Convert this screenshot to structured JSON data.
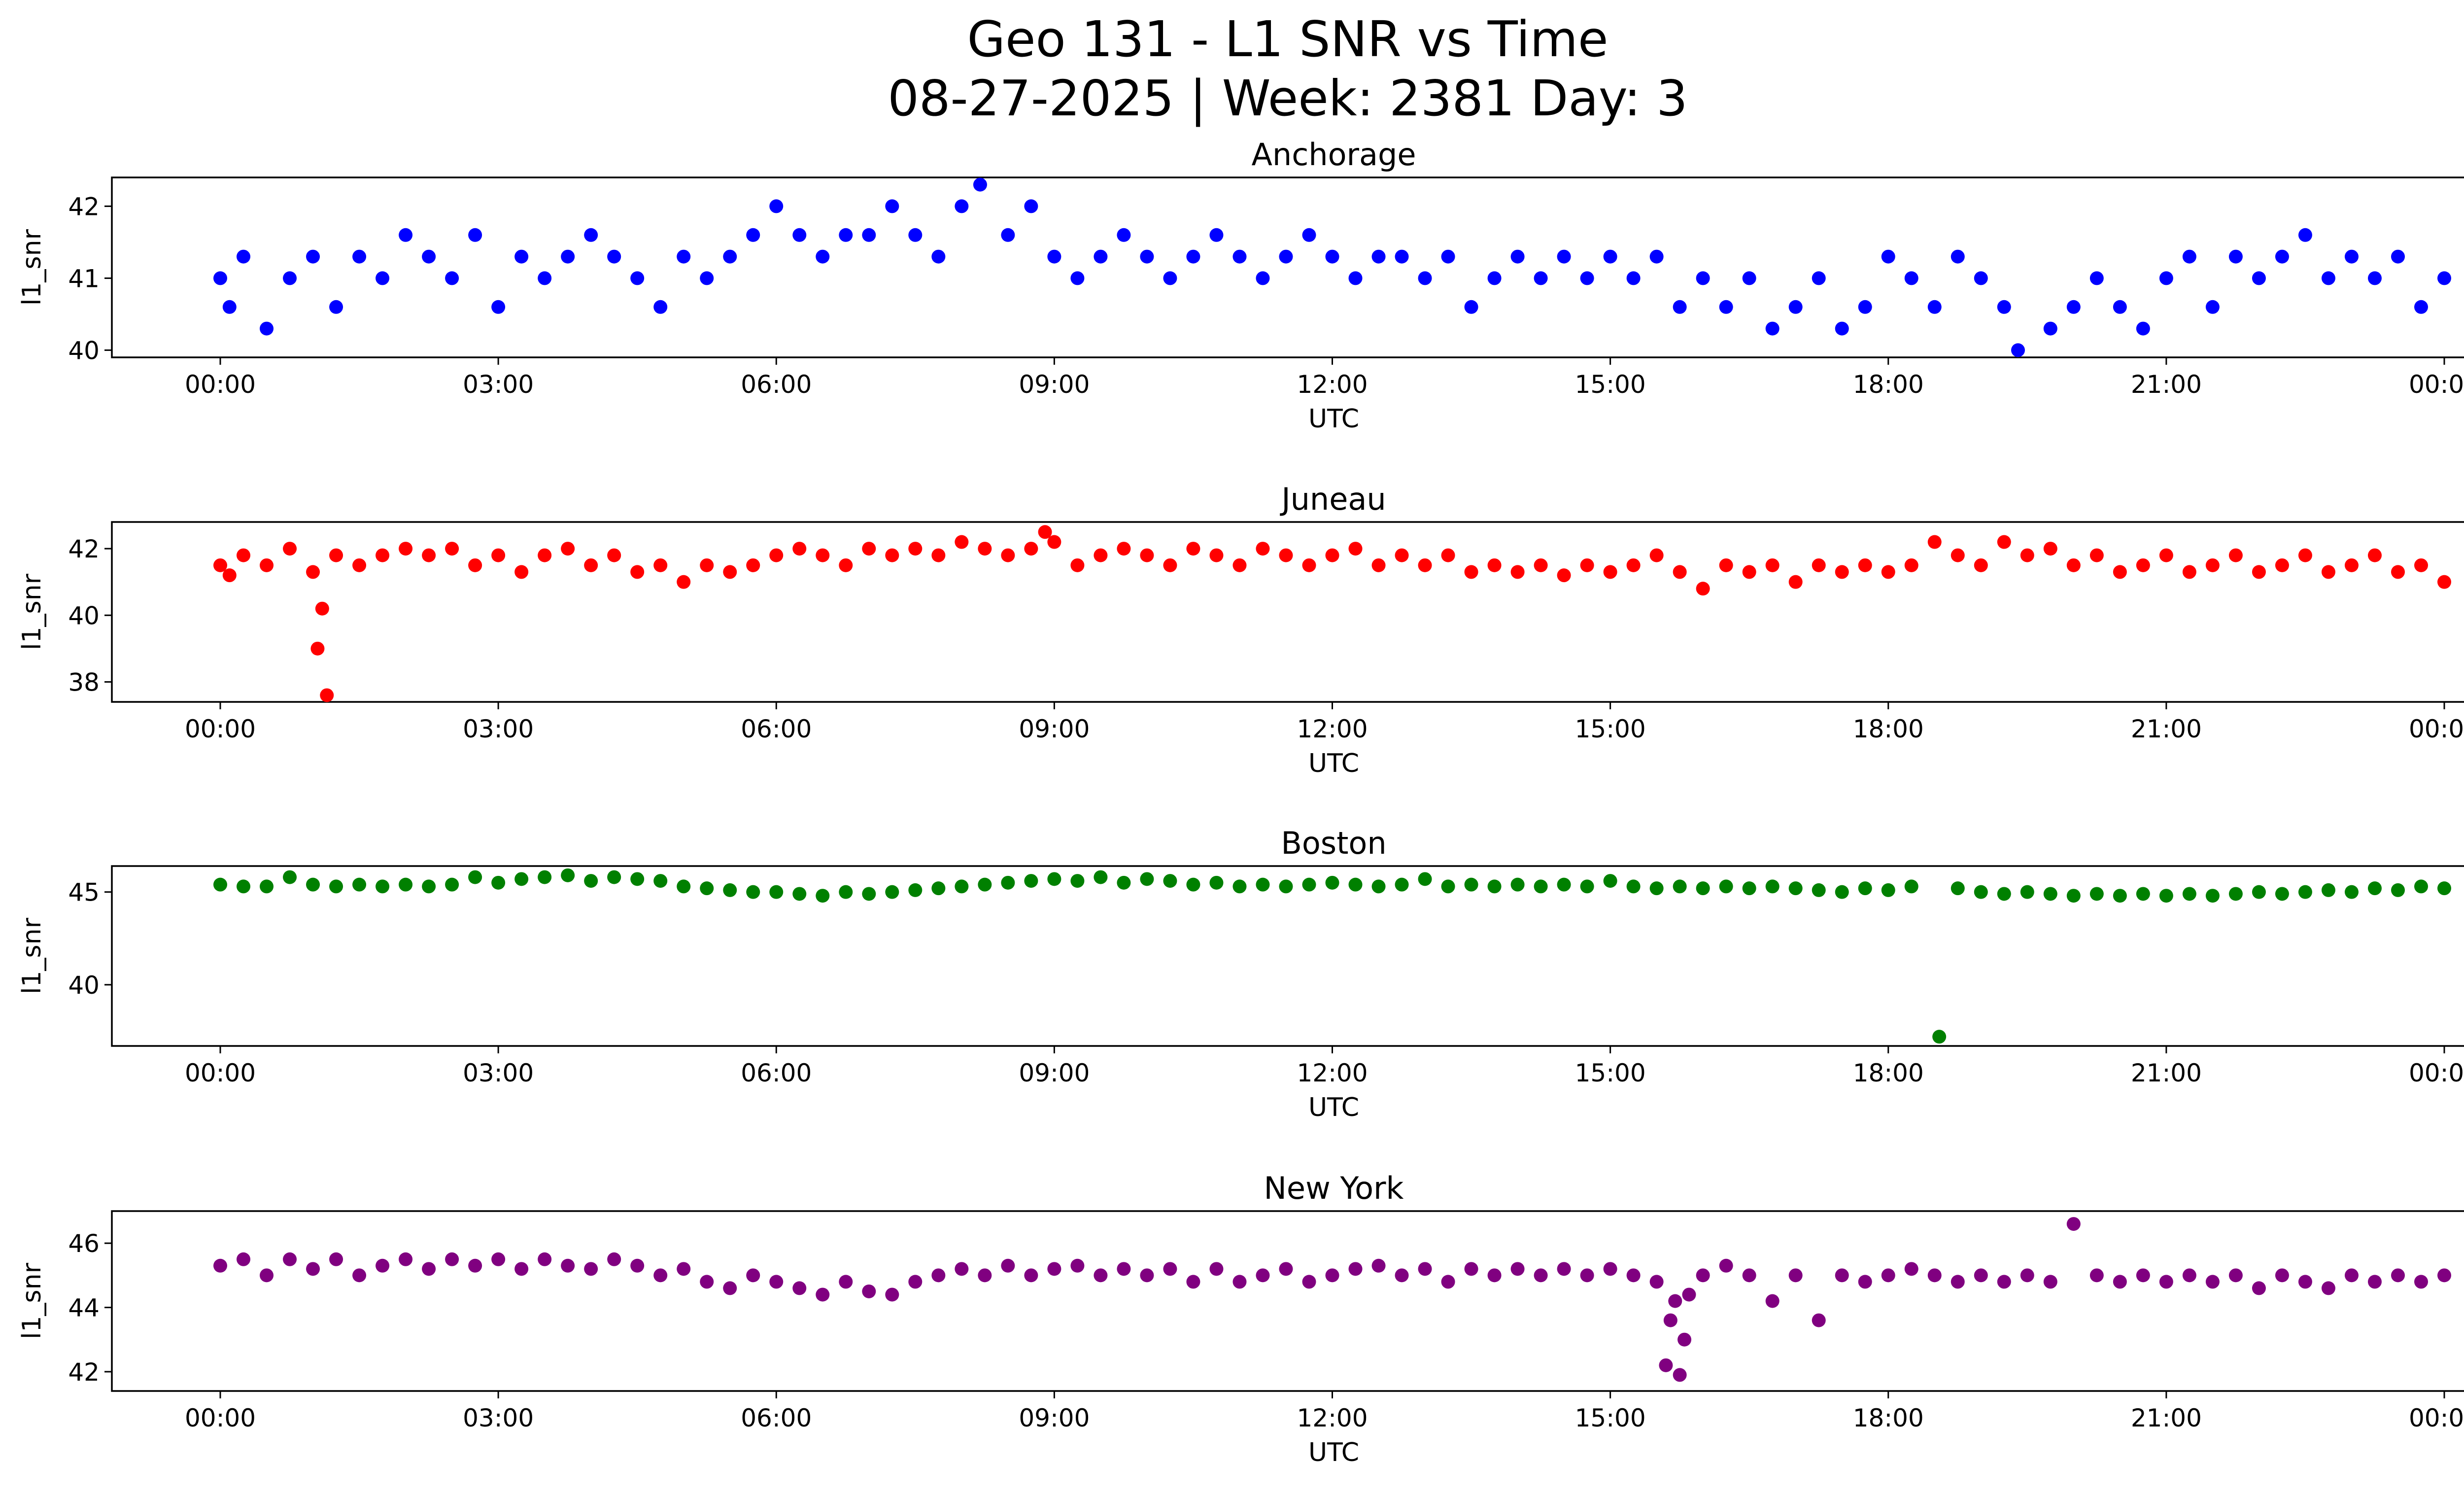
{
  "title_line1": "Geo 131 - L1 SNR vs Time",
  "title_line2": "08-27-2025 | Week: 2381 Day: 3",
  "x_ticks": [
    "00:00",
    "03:00",
    "06:00",
    "09:00",
    "12:00",
    "15:00",
    "18:00",
    "21:00",
    "00:00"
  ],
  "chart_data": [
    {
      "type": "scatter",
      "title": "Anchorage",
      "xlabel": "UTC",
      "ylabel": "l1_snr",
      "color": "#0000ff",
      "xlim": [
        0,
        24
      ],
      "ylim": [
        39.9,
        42.4
      ],
      "yticks": [
        40,
        41,
        42
      ],
      "series": [
        {
          "name": "Anchorage",
          "x": [
            0.0,
            0.1,
            0.25,
            0.5,
            0.75,
            1.0,
            1.25,
            1.5,
            1.75,
            2.0,
            2.25,
            2.5,
            2.75,
            3.0,
            3.25,
            3.5,
            3.75,
            4.0,
            4.25,
            4.5,
            4.75,
            5.0,
            5.25,
            5.5,
            5.75,
            6.0,
            6.25,
            6.5,
            6.75,
            7.0,
            7.25,
            7.5,
            7.75,
            8.0,
            8.2,
            8.5,
            8.75,
            9.0,
            9.25,
            9.5,
            9.75,
            10.0,
            10.25,
            10.5,
            10.75,
            11.0,
            11.25,
            11.5,
            11.75,
            12.0,
            12.25,
            12.5,
            12.75,
            13.0,
            13.25,
            13.5,
            13.75,
            14.0,
            14.25,
            14.5,
            14.75,
            15.0,
            15.25,
            15.5,
            15.75,
            16.0,
            16.25,
            16.5,
            16.75,
            17.0,
            17.25,
            17.5,
            17.75,
            18.0,
            18.25,
            18.5,
            18.75,
            19.0,
            19.25,
            19.4,
            19.75,
            20.0,
            20.25,
            20.5,
            20.75,
            21.0,
            21.25,
            21.5,
            21.75,
            22.0,
            22.25,
            22.5,
            22.75,
            23.0,
            23.25,
            23.5,
            23.75,
            24.0
          ],
          "y": [
            41.0,
            40.6,
            41.3,
            40.3,
            41.0,
            41.3,
            40.6,
            41.3,
            41.0,
            41.6,
            41.3,
            41.0,
            41.6,
            40.6,
            41.3,
            41.0,
            41.3,
            41.6,
            41.3,
            41.0,
            40.6,
            41.3,
            41.0,
            41.3,
            41.6,
            42.0,
            41.6,
            41.3,
            41.6,
            41.6,
            42.0,
            41.6,
            41.3,
            42.0,
            42.3,
            41.6,
            42.0,
            41.3,
            41.0,
            41.3,
            41.6,
            41.3,
            41.0,
            41.3,
            41.6,
            41.3,
            41.0,
            41.3,
            41.6,
            41.3,
            41.0,
            41.3,
            41.3,
            41.0,
            41.3,
            40.6,
            41.0,
            41.3,
            41.0,
            41.3,
            41.0,
            41.3,
            41.0,
            41.3,
            40.6,
            41.0,
            40.6,
            41.0,
            40.3,
            40.6,
            41.0,
            40.3,
            40.6,
            41.3,
            41.0,
            40.6,
            41.3,
            41.0,
            40.6,
            40.0,
            40.3,
            40.6,
            41.0,
            40.6,
            40.3,
            41.0,
            41.3,
            40.6,
            41.3,
            41.0,
            41.3,
            41.6,
            41.0,
            41.3,
            41.0,
            41.3,
            40.6,
            41.0
          ]
        }
      ]
    },
    {
      "type": "scatter",
      "title": "Juneau",
      "xlabel": "UTC",
      "ylabel": "l1_snr",
      "color": "#ff0000",
      "xlim": [
        0,
        24
      ],
      "ylim": [
        37.4,
        42.8
      ],
      "yticks": [
        38,
        40,
        42
      ],
      "series": [
        {
          "name": "Juneau",
          "x": [
            0.0,
            0.1,
            1.1,
            1.05,
            1.15,
            0.25,
            0.5,
            0.75,
            1.0,
            1.25,
            1.5,
            1.75,
            2.0,
            2.25,
            2.5,
            2.75,
            3.0,
            3.25,
            3.5,
            3.75,
            4.0,
            4.25,
            4.5,
            4.75,
            5.0,
            5.25,
            5.5,
            5.75,
            6.0,
            6.25,
            6.5,
            6.75,
            7.0,
            7.25,
            7.5,
            7.75,
            8.0,
            8.25,
            8.5,
            8.75,
            8.9,
            9.0,
            9.25,
            9.5,
            9.75,
            10.0,
            10.25,
            10.5,
            10.75,
            11.0,
            11.25,
            11.5,
            11.75,
            12.0,
            12.25,
            12.5,
            12.75,
            13.0,
            13.25,
            13.5,
            13.75,
            14.0,
            14.25,
            14.5,
            14.75,
            15.0,
            15.25,
            15.5,
            15.75,
            16.0,
            16.25,
            16.5,
            16.75,
            17.0,
            17.25,
            17.5,
            17.75,
            18.0,
            18.25,
            18.5,
            18.75,
            19.0,
            19.25,
            19.5,
            19.75,
            20.0,
            20.25,
            20.5,
            20.75,
            21.0,
            21.25,
            21.5,
            21.75,
            22.0,
            22.25,
            22.5,
            22.75,
            23.0,
            23.25,
            23.5,
            23.75,
            24.0
          ],
          "y": [
            41.5,
            41.2,
            40.2,
            39.0,
            37.6,
            41.8,
            41.5,
            42.0,
            41.3,
            41.8,
            41.5,
            41.8,
            42.0,
            41.8,
            42.0,
            41.5,
            41.8,
            41.3,
            41.8,
            42.0,
            41.5,
            41.8,
            41.3,
            41.5,
            41.0,
            41.5,
            41.3,
            41.5,
            41.8,
            42.0,
            41.8,
            41.5,
            42.0,
            41.8,
            42.0,
            41.8,
            42.2,
            42.0,
            41.8,
            42.0,
            42.5,
            42.2,
            41.5,
            41.8,
            42.0,
            41.8,
            41.5,
            42.0,
            41.8,
            41.5,
            42.0,
            41.8,
            41.5,
            41.8,
            42.0,
            41.5,
            41.8,
            41.5,
            41.8,
            41.3,
            41.5,
            41.3,
            41.5,
            41.2,
            41.5,
            41.3,
            41.5,
            41.8,
            41.3,
            40.8,
            41.5,
            41.3,
            41.5,
            41.0,
            41.5,
            41.3,
            41.5,
            41.3,
            41.5,
            42.2,
            41.8,
            41.5,
            42.2,
            41.8,
            42.0,
            41.5,
            41.8,
            41.3,
            41.5,
            41.8,
            41.3,
            41.5,
            41.8,
            41.3,
            41.5,
            41.8,
            41.3,
            41.5,
            41.8,
            41.3,
            41.5,
            41.0
          ]
        }
      ]
    },
    {
      "type": "scatter",
      "title": "Boston",
      "xlabel": "UTC",
      "ylabel": "l1_snr",
      "color": "#008000",
      "xlim": [
        0,
        24
      ],
      "ylim": [
        36.7,
        46.4
      ],
      "yticks": [
        40,
        45
      ],
      "series": [
        {
          "name": "Boston",
          "x": [
            0.0,
            0.25,
            0.5,
            0.75,
            1.0,
            1.25,
            1.5,
            1.75,
            2.0,
            2.25,
            2.5,
            2.75,
            3.0,
            3.25,
            3.5,
            3.75,
            4.0,
            4.25,
            4.5,
            4.75,
            5.0,
            5.25,
            5.5,
            5.75,
            6.0,
            6.25,
            6.5,
            6.75,
            7.0,
            7.25,
            7.5,
            7.75,
            8.0,
            8.25,
            8.5,
            8.75,
            9.0,
            9.25,
            9.5,
            9.75,
            10.0,
            10.25,
            10.5,
            10.75,
            11.0,
            11.25,
            11.5,
            11.75,
            12.0,
            12.25,
            12.5,
            12.75,
            13.0,
            13.25,
            13.5,
            13.75,
            14.0,
            14.25,
            14.5,
            14.75,
            15.0,
            15.25,
            15.5,
            15.75,
            16.0,
            16.25,
            16.5,
            16.75,
            17.0,
            17.25,
            17.5,
            17.75,
            18.0,
            18.25,
            18.55,
            18.75,
            19.0,
            19.25,
            19.5,
            19.75,
            20.0,
            20.25,
            20.5,
            20.75,
            21.0,
            21.25,
            21.5,
            21.75,
            22.0,
            22.25,
            22.5,
            22.75,
            23.0,
            23.25,
            23.5,
            23.75,
            24.0
          ],
          "y": [
            45.4,
            45.3,
            45.3,
            45.8,
            45.4,
            45.3,
            45.4,
            45.3,
            45.4,
            45.3,
            45.4,
            45.8,
            45.5,
            45.7,
            45.8,
            45.9,
            45.6,
            45.8,
            45.7,
            45.6,
            45.3,
            45.2,
            45.1,
            45.0,
            45.0,
            44.9,
            44.8,
            45.0,
            44.9,
            45.0,
            45.1,
            45.2,
            45.3,
            45.4,
            45.5,
            45.6,
            45.7,
            45.6,
            45.8,
            45.5,
            45.7,
            45.6,
            45.4,
            45.5,
            45.3,
            45.4,
            45.3,
            45.4,
            45.5,
            45.4,
            45.3,
            45.4,
            45.7,
            45.3,
            45.4,
            45.3,
            45.4,
            45.3,
            45.4,
            45.3,
            45.6,
            45.3,
            45.2,
            45.3,
            45.2,
            45.3,
            45.2,
            45.3,
            45.2,
            45.1,
            45.0,
            45.2,
            45.1,
            45.3,
            37.2,
            45.2,
            45.0,
            44.9,
            45.0,
            44.9,
            44.8,
            44.9,
            44.8,
            44.9,
            44.8,
            44.9,
            44.8,
            44.9,
            45.0,
            44.9,
            45.0,
            45.1,
            45.0,
            45.2,
            45.1,
            45.3,
            45.2
          ]
        }
      ]
    },
    {
      "type": "scatter",
      "title": "New York",
      "xlabel": "UTC",
      "ylabel": "l1_snr",
      "color": "#800080",
      "xlim": [
        0,
        24
      ],
      "ylim": [
        41.4,
        47.0
      ],
      "yticks": [
        42,
        44,
        46
      ],
      "series": [
        {
          "name": "New York",
          "x": [
            0.0,
            0.25,
            0.5,
            0.75,
            1.0,
            1.25,
            1.5,
            1.75,
            2.0,
            2.25,
            2.5,
            2.75,
            3.0,
            3.25,
            3.5,
            3.75,
            4.0,
            4.25,
            4.5,
            4.75,
            5.0,
            5.25,
            5.5,
            5.75,
            6.0,
            6.25,
            6.5,
            6.75,
            7.0,
            7.25,
            7.5,
            7.75,
            8.0,
            8.25,
            8.5,
            8.75,
            9.0,
            9.25,
            9.5,
            9.75,
            10.0,
            10.25,
            10.5,
            10.75,
            11.0,
            11.25,
            11.5,
            11.75,
            12.0,
            12.25,
            12.5,
            12.75,
            13.0,
            13.25,
            13.5,
            13.75,
            14.0,
            14.25,
            14.5,
            14.75,
            15.0,
            15.25,
            15.5,
            15.6,
            15.65,
            15.7,
            15.75,
            15.8,
            15.85,
            16.0,
            16.25,
            16.5,
            16.75,
            17.0,
            17.25,
            17.5,
            17.75,
            18.0,
            18.25,
            18.5,
            18.75,
            19.0,
            19.25,
            19.5,
            19.75,
            20.0,
            20.25,
            20.5,
            20.75,
            21.0,
            21.25,
            21.5,
            21.75,
            22.0,
            22.25,
            22.5,
            22.75,
            23.0,
            23.25,
            23.5,
            23.75,
            24.0
          ],
          "y": [
            45.3,
            45.5,
            45.0,
            45.5,
            45.2,
            45.5,
            45.0,
            45.3,
            45.5,
            45.2,
            45.5,
            45.3,
            45.5,
            45.2,
            45.5,
            45.3,
            45.2,
            45.5,
            45.3,
            45.0,
            45.2,
            44.8,
            44.6,
            45.0,
            44.8,
            44.6,
            44.4,
            44.8,
            44.5,
            44.4,
            44.8,
            45.0,
            45.2,
            45.0,
            45.3,
            45.0,
            45.2,
            45.3,
            45.0,
            45.2,
            45.0,
            45.2,
            44.8,
            45.2,
            44.8,
            45.0,
            45.2,
            44.8,
            45.0,
            45.2,
            45.3,
            45.0,
            45.2,
            44.8,
            45.2,
            45.0,
            45.2,
            45.0,
            45.2,
            45.0,
            45.2,
            45.0,
            44.8,
            42.2,
            43.6,
            44.2,
            41.9,
            43.0,
            44.4,
            45.0,
            45.3,
            45.0,
            44.2,
            45.0,
            43.6,
            45.0,
            44.8,
            45.0,
            45.2,
            45.0,
            44.8,
            45.0,
            44.8,
            45.0,
            44.8,
            46.6,
            45.0,
            44.8,
            45.0,
            44.8,
            45.0,
            44.8,
            45.0,
            44.6,
            45.0,
            44.8,
            44.6,
            45.0,
            44.8,
            45.0,
            44.8,
            45.0
          ]
        }
      ]
    }
  ]
}
